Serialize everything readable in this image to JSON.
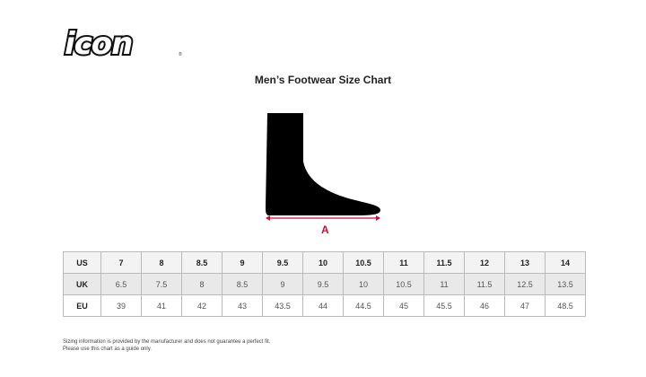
{
  "logo": {
    "text": "icon"
  },
  "title": "Men’s Footwear Size Chart",
  "diagram": {
    "measure_label": "A",
    "arrow_color": "#c8102e"
  },
  "table": {
    "rows": [
      {
        "label": "US",
        "values": [
          "7",
          "8",
          "8.5",
          "9",
          "9.5",
          "10",
          "10.5",
          "11",
          "11.5",
          "12",
          "13",
          "14"
        ]
      },
      {
        "label": "UK",
        "values": [
          "6.5",
          "7.5",
          "8",
          "8.5",
          "9",
          "9.5",
          "10",
          "10.5",
          "11",
          "11.5",
          "12.5",
          "13.5"
        ]
      },
      {
        "label": "EU",
        "values": [
          "39",
          "41",
          "42",
          "43",
          "43.5",
          "44",
          "44.5",
          "45",
          "45.5",
          "46",
          "47",
          "48.5"
        ]
      }
    ]
  },
  "note": {
    "line1": "Sizing information is provided by the manufacturer and does not guarantee a perfect fit.",
    "line2": "Please use this chart as a guide only."
  }
}
